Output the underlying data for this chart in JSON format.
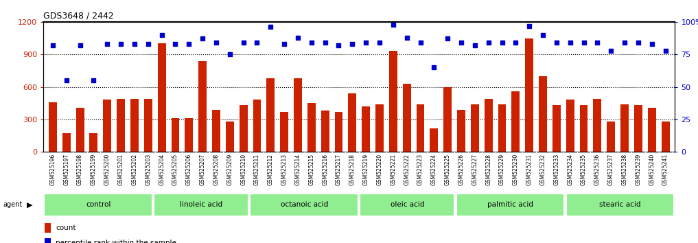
{
  "title": "GDS3648 / 2442",
  "categories": [
    "GSM525196",
    "GSM525197",
    "GSM525198",
    "GSM525199",
    "GSM525200",
    "GSM525201",
    "GSM525202",
    "GSM525203",
    "GSM525204",
    "GSM525205",
    "GSM525206",
    "GSM525207",
    "GSM525208",
    "GSM525209",
    "GSM525210",
    "GSM525211",
    "GSM525212",
    "GSM525213",
    "GSM525214",
    "GSM525215",
    "GSM525216",
    "GSM525217",
    "GSM525218",
    "GSM525219",
    "GSM525220",
    "GSM525221",
    "GSM525222",
    "GSM525223",
    "GSM525224",
    "GSM525225",
    "GSM525226",
    "GSM525227",
    "GSM525228",
    "GSM525229",
    "GSM525230",
    "GSM525231",
    "GSM525232",
    "GSM525233",
    "GSM525234",
    "GSM525235",
    "GSM525236",
    "GSM525237",
    "GSM525238",
    "GSM525239",
    "GSM525240",
    "GSM525241"
  ],
  "bar_values": [
    460,
    170,
    410,
    170,
    480,
    490,
    490,
    490,
    1000,
    310,
    310,
    840,
    390,
    280,
    430,
    480,
    680,
    370,
    680,
    450,
    380,
    370,
    540,
    420,
    440,
    930,
    630,
    440,
    220,
    600,
    390,
    440,
    490,
    440,
    560,
    1050,
    700,
    430,
    480,
    430,
    490,
    280,
    440,
    430,
    410,
    280
  ],
  "percentile_values": [
    82,
    55,
    82,
    55,
    83,
    83,
    83,
    83,
    90,
    83,
    83,
    87,
    84,
    75,
    84,
    84,
    96,
    83,
    88,
    84,
    84,
    82,
    83,
    84,
    84,
    98,
    88,
    84,
    65,
    87,
    84,
    82,
    84,
    84,
    84,
    97,
    90,
    84,
    84,
    84,
    84,
    78,
    84,
    84,
    83,
    78
  ],
  "groups": [
    {
      "name": "control",
      "start": 0,
      "end": 7
    },
    {
      "name": "linoleic acid",
      "start": 8,
      "end": 14
    },
    {
      "name": "octanoic acid",
      "start": 15,
      "end": 22
    },
    {
      "name": "oleic acid",
      "start": 23,
      "end": 29
    },
    {
      "name": "palmitic acid",
      "start": 30,
      "end": 37
    },
    {
      "name": "stearic acid",
      "start": 38,
      "end": 45
    }
  ],
  "bar_color": "#cc2200",
  "dot_color": "#0000cc",
  "group_color": "#90ee90",
  "xtick_bg": "#d8d8d8",
  "left_ylim": [
    0,
    1200
  ],
  "right_ylim": [
    0,
    100
  ],
  "left_yticks": [
    0,
    300,
    600,
    900,
    1200
  ],
  "right_yticks": [
    0,
    25,
    50,
    75,
    100
  ],
  "grid_values": [
    300,
    600,
    900
  ]
}
